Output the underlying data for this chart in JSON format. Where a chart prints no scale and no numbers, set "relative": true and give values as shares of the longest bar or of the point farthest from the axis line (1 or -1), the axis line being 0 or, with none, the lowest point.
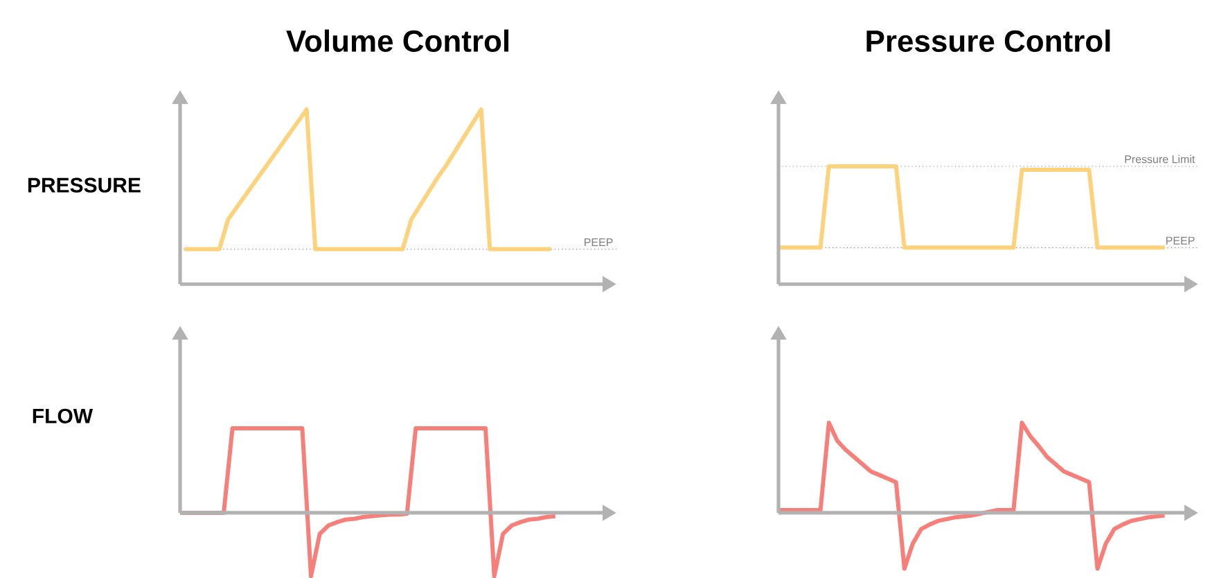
{
  "chart_data": [
    {
      "type": "line",
      "title": "Volume Control",
      "ylabel": "PRESSURE",
      "relative": true,
      "categories": [
        null,
        null,
        null,
        null,
        null,
        null,
        null,
        null,
        null,
        null,
        null,
        null,
        null,
        null,
        null,
        null,
        null,
        null,
        null,
        null,
        null,
        null,
        null,
        null,
        null,
        null,
        null,
        null,
        null,
        null,
        null,
        null,
        null,
        null,
        null,
        null,
        null,
        null,
        null,
        null,
        null,
        null,
        null
      ],
      "series": [
        {
          "color": "#fdd27c",
          "values": [
            0.2,
            0.2,
            0.2,
            0.2,
            0.2,
            0.37,
            0.44,
            0.51,
            0.58,
            0.65,
            0.72,
            0.79,
            0.86,
            0.93,
            1,
            0.2,
            0.2,
            0.2,
            0.2,
            0.2,
            0.2,
            0.2,
            0.2,
            0.2,
            0.2,
            0.2,
            0.37,
            0.45,
            0.53,
            0.61,
            0.68,
            0.76,
            0.84,
            0.92,
            1,
            0.2,
            0.2,
            0.2,
            0.2,
            0.2,
            0.2,
            0.2,
            0.2
          ]
        }
      ],
      "ref_lines": [
        {
          "axis": "y",
          "value": 0.2,
          "label": "PEEP",
          "color": "#7f7f7f",
          "line_style": "dotted"
        }
      ]
    },
    {
      "type": "line",
      "title": "Pressure Control",
      "relative": true,
      "categories": [
        null,
        null,
        null,
        null,
        null,
        null,
        null,
        null,
        null,
        null,
        null,
        null,
        null,
        null,
        null,
        null,
        null,
        null,
        null,
        null,
        null,
        null,
        null,
        null,
        null,
        null,
        null,
        null,
        null,
        null,
        null,
        null,
        null,
        null,
        null,
        null,
        null,
        null,
        null,
        null,
        null,
        null,
        null,
        null,
        null,
        null,
        null
      ],
      "series": [
        {
          "color": "#fdd27c",
          "values": [
            0.31,
            0.31,
            0.31,
            0.31,
            0.31,
            0.31,
            1,
            1,
            1,
            1,
            1,
            1,
            1,
            1,
            1,
            0.31,
            0.31,
            0.31,
            0.31,
            0.31,
            0.31,
            0.31,
            0.31,
            0.31,
            0.31,
            0.31,
            0.31,
            0.31,
            0.31,
            0.97,
            0.97,
            0.97,
            0.97,
            0.97,
            0.97,
            0.97,
            0.97,
            0.97,
            0.31,
            0.31,
            0.31,
            0.31,
            0.31,
            0.31,
            0.31,
            0.31,
            0.31
          ]
        }
      ],
      "ref_lines": [
        {
          "axis": "y",
          "value": 1,
          "label": "Pressure Limit",
          "color": "#7f7f7f",
          "line_style": "dotted"
        },
        {
          "axis": "y",
          "value": 0.31,
          "label": "PEEP",
          "color": "#7f7f7f",
          "line_style": "dotted"
        }
      ]
    },
    {
      "type": "line",
      "ylabel": "FLOW",
      "relative": true,
      "categories": [
        null,
        null,
        null,
        null,
        null,
        null,
        null,
        null,
        null,
        null,
        null,
        null,
        null,
        null,
        null,
        null,
        null,
        null,
        null,
        null,
        null,
        null,
        null,
        null,
        null,
        null,
        null,
        null,
        null,
        null,
        null,
        null,
        null,
        null,
        null,
        null,
        null,
        null,
        null,
        null,
        null,
        null,
        null,
        null
      ],
      "series": [
        {
          "color": "#f77f7a",
          "values": [
            0,
            0,
            0,
            0,
            0,
            0,
            1,
            1,
            1,
            1,
            1,
            1,
            1,
            1,
            1,
            -0.75,
            -0.25,
            -0.15,
            -0.11,
            -0.08,
            -0.07,
            -0.05,
            -0.04,
            -0.03,
            -0.02,
            -0.02,
            -0.01,
            1,
            1,
            1,
            1,
            1,
            1,
            1,
            1,
            1,
            -0.75,
            -0.25,
            -0.15,
            -0.11,
            -0.08,
            -0.07,
            -0.05,
            -0.04
          ]
        }
      ]
    },
    {
      "type": "line",
      "relative": true,
      "categories": [
        null,
        null,
        null,
        null,
        null,
        null,
        null,
        null,
        null,
        null,
        null,
        null,
        null,
        null,
        null,
        null,
        null,
        null,
        null,
        null,
        null,
        null,
        null,
        null,
        null,
        null,
        null,
        null,
        null,
        null,
        null,
        null,
        null,
        null,
        null,
        null,
        null,
        null,
        null,
        null,
        null,
        null,
        null,
        null,
        null,
        null,
        null
      ],
      "series": [
        {
          "color": "#f77f7a",
          "values": [
            0.03,
            0.03,
            0.03,
            0.03,
            0.03,
            0.03,
            1,
            0.8,
            0.7,
            0.62,
            0.54,
            0.46,
            0.42,
            0.38,
            0.34,
            -0.62,
            -0.34,
            -0.18,
            -0.13,
            -0.09,
            -0.07,
            -0.05,
            -0.04,
            -0.03,
            -0.01,
            0.01,
            0.03,
            0.03,
            0.03,
            1,
            0.85,
            0.74,
            0.62,
            0.54,
            0.46,
            0.42,
            0.38,
            0.34,
            -0.62,
            -0.34,
            -0.18,
            -0.13,
            -0.09,
            -0.07,
            -0.05,
            -0.04,
            -0.03
          ]
        }
      ]
    }
  ]
}
